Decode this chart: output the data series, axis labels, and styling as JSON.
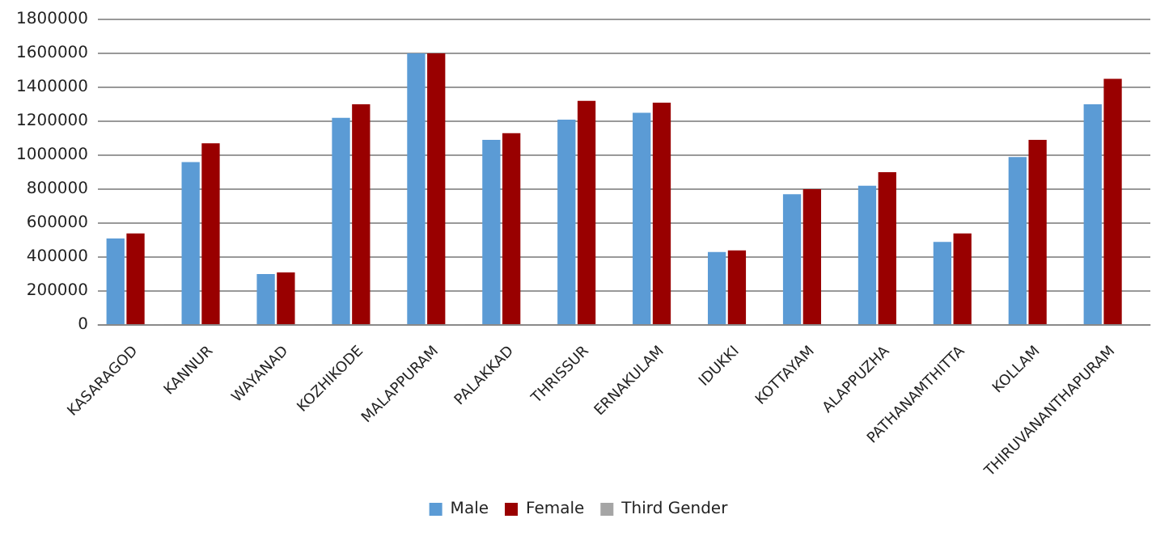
{
  "chart_data": {
    "type": "bar",
    "categories": [
      "KASARAGOD",
      "KANNUR",
      "WAYANAD",
      "KOZHIKODE",
      "MALAPPURAM",
      "PALAKKAD",
      "THRISSUR",
      "ERNAKULAM",
      "IDUKKI",
      "KOTTAYAM",
      "ALAPPUZHA",
      "PATHANAMTHITTA",
      "KOLLAM",
      "THIRUVANANTHAPURAM"
    ],
    "series": [
      {
        "name": "Male",
        "color": "#5b9bd5",
        "values": [
          510000,
          960000,
          300000,
          1220000,
          1600000,
          1090000,
          1210000,
          1250000,
          430000,
          770000,
          820000,
          490000,
          990000,
          1300000
        ]
      },
      {
        "name": "Female",
        "color": "#990000",
        "values": [
          540000,
          1070000,
          310000,
          1300000,
          1600000,
          1130000,
          1320000,
          1310000,
          440000,
          800000,
          900000,
          540000,
          1090000,
          1450000
        ]
      },
      {
        "name": "Third Gender",
        "color": "#a5a5a5",
        "values": [
          5000,
          5000,
          5000,
          5000,
          5000,
          5000,
          5000,
          5000,
          5000,
          5000,
          5000,
          5000,
          5000,
          5000
        ]
      }
    ],
    "ylim": [
      0,
      1800000
    ],
    "yticks": [
      0,
      200000,
      400000,
      600000,
      800000,
      1000000,
      1200000,
      1400000,
      1600000,
      1800000
    ],
    "grid": "y",
    "legend": "bottom"
  }
}
